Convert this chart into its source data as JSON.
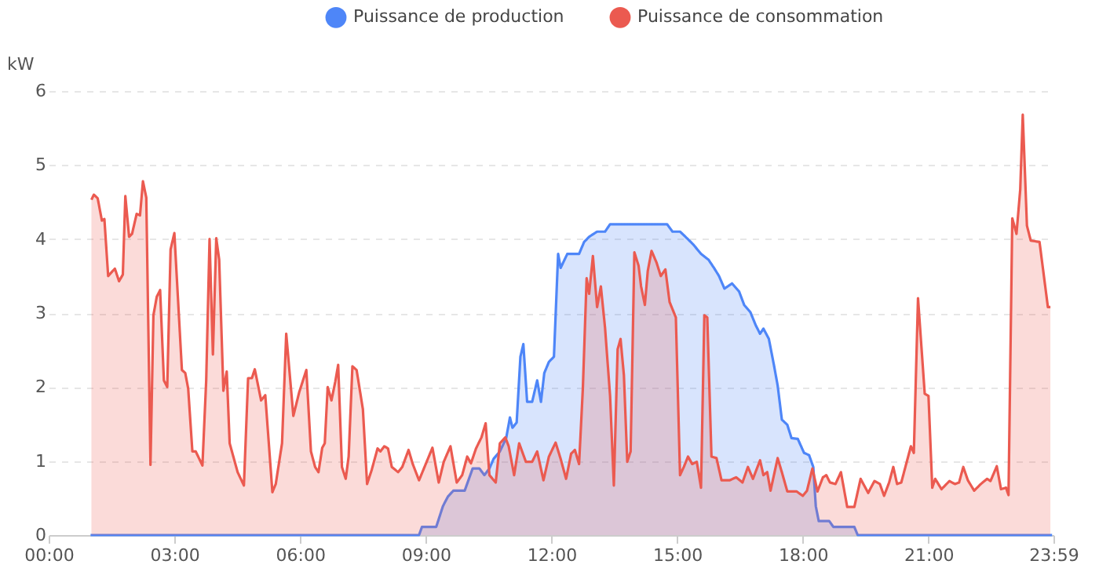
{
  "chart_data": {
    "type": "area",
    "ylabel": "kW",
    "xlim": [
      0,
      23.983
    ],
    "xticks": [
      {
        "value": 0,
        "label": "00:00"
      },
      {
        "value": 3,
        "label": "03:00"
      },
      {
        "value": 6,
        "label": "06:00"
      },
      {
        "value": 9,
        "label": "09:00"
      },
      {
        "value": 12,
        "label": "12:00"
      },
      {
        "value": 15,
        "label": "15:00"
      },
      {
        "value": 18,
        "label": "18:00"
      },
      {
        "value": 21,
        "label": "21:00"
      },
      {
        "value": 23.983,
        "label": "23:59"
      }
    ],
    "ylim": [
      0,
      6
    ],
    "yticks": [
      0,
      1,
      2,
      3,
      4,
      5,
      6
    ],
    "grid": "y",
    "legend": "top",
    "marker": "none",
    "line_style": "solid",
    "series": [
      {
        "name": "Puissance de production",
        "color": "#4e86f8",
        "x": [
          1.0,
          8.84,
          8.91,
          9.25,
          9.41,
          9.53,
          9.66,
          9.93,
          10.12,
          10.28,
          10.4,
          10.52,
          10.62,
          10.77,
          10.92,
          11.01,
          11.07,
          11.17,
          11.26,
          11.33,
          11.42,
          11.54,
          11.66,
          11.75,
          11.83,
          11.94,
          12.06,
          12.16,
          12.22,
          12.38,
          12.66,
          12.78,
          12.9,
          13.09,
          13.28,
          13.4,
          14.76,
          14.89,
          15.07,
          15.2,
          15.38,
          15.57,
          15.75,
          15.88,
          16.0,
          16.13,
          16.31,
          16.48,
          16.6,
          16.75,
          16.88,
          16.98,
          17.06,
          17.19,
          17.31,
          17.4,
          17.5,
          17.63,
          17.73,
          17.88,
          18.03,
          18.15,
          18.25,
          18.31,
          18.38,
          18.63,
          18.73,
          19.23,
          19.31,
          23.95
        ],
        "values": [
          0,
          0,
          0.11,
          0.11,
          0.39,
          0.52,
          0.6,
          0.6,
          0.9,
          0.9,
          0.81,
          0.9,
          1.03,
          1.13,
          1.31,
          1.59,
          1.45,
          1.52,
          2.41,
          2.58,
          1.8,
          1.8,
          2.09,
          1.8,
          2.19,
          2.34,
          2.41,
          3.8,
          3.61,
          3.8,
          3.8,
          3.96,
          4.03,
          4.1,
          4.1,
          4.2,
          4.2,
          4.1,
          4.1,
          4.03,
          3.93,
          3.8,
          3.72,
          3.61,
          3.5,
          3.33,
          3.4,
          3.29,
          3.11,
          3.01,
          2.83,
          2.72,
          2.79,
          2.65,
          2.3,
          2.02,
          1.56,
          1.49,
          1.31,
          1.3,
          1.11,
          1.08,
          0.92,
          0.39,
          0.19,
          0.19,
          0.11,
          0.11,
          0,
          0
        ]
      },
      {
        "name": "Puissance de consommation",
        "color": "#eb5a50",
        "x": [
          1.02,
          1.08,
          1.17,
          1.27,
          1.33,
          1.42,
          1.58,
          1.68,
          1.77,
          1.83,
          1.92,
          1.99,
          2.1,
          2.18,
          2.25,
          2.33,
          2.43,
          2.5,
          2.58,
          2.66,
          2.75,
          2.83,
          2.91,
          3.0,
          3.18,
          3.26,
          3.33,
          3.43,
          3.51,
          3.67,
          3.76,
          3.84,
          3.92,
          4.0,
          4.07,
          4.17,
          4.25,
          4.32,
          4.51,
          4.66,
          4.76,
          4.85,
          4.92,
          5.07,
          5.17,
          5.34,
          5.42,
          5.57,
          5.67,
          5.84,
          5.98,
          6.15,
          6.26,
          6.36,
          6.44,
          6.53,
          6.59,
          6.66,
          6.75,
          6.84,
          6.91,
          7.0,
          7.09,
          7.16,
          7.25,
          7.35,
          7.5,
          7.6,
          7.71,
          7.85,
          7.92,
          8.01,
          8.1,
          8.19,
          8.34,
          8.44,
          8.59,
          8.69,
          8.84,
          9.0,
          9.16,
          9.31,
          9.43,
          9.59,
          9.74,
          9.87,
          9.99,
          10.08,
          10.2,
          10.33,
          10.43,
          10.52,
          10.67,
          10.77,
          10.9,
          10.98,
          11.11,
          11.23,
          11.39,
          11.54,
          11.66,
          11.81,
          11.94,
          12.1,
          12.22,
          12.35,
          12.47,
          12.56,
          12.66,
          12.75,
          12.84,
          12.9,
          12.99,
          13.09,
          13.18,
          13.28,
          13.4,
          13.49,
          13.58,
          13.65,
          13.73,
          13.81,
          13.89,
          13.98,
          14.08,
          14.14,
          14.23,
          14.3,
          14.39,
          14.51,
          14.61,
          14.72,
          14.82,
          14.97,
          15.07,
          15.16,
          15.26,
          15.36,
          15.47,
          15.57,
          15.65,
          15.72,
          15.82,
          15.94,
          16.06,
          16.25,
          16.41,
          16.56,
          16.69,
          16.81,
          16.98,
          17.06,
          17.15,
          17.23,
          17.4,
          17.5,
          17.63,
          17.85,
          18.0,
          18.1,
          18.23,
          18.35,
          18.48,
          18.56,
          18.65,
          18.78,
          18.91,
          19.06,
          19.23,
          19.38,
          19.56,
          19.71,
          19.84,
          19.94,
          20.06,
          20.16,
          20.25,
          20.35,
          20.58,
          20.65,
          20.75,
          20.91,
          21.0,
          21.09,
          21.16,
          21.31,
          21.5,
          21.63,
          21.73,
          21.83,
          21.94,
          22.09,
          22.25,
          22.4,
          22.48,
          22.63,
          22.73,
          22.85,
          22.91,
          23.0,
          23.1,
          23.19,
          23.25,
          23.35,
          23.44,
          23.65,
          23.85,
          23.91
        ],
        "values": [
          4.53,
          4.6,
          4.55,
          4.25,
          4.27,
          3.5,
          3.6,
          3.43,
          3.52,
          4.58,
          4.03,
          4.07,
          4.34,
          4.32,
          4.78,
          4.56,
          0.95,
          2.97,
          3.22,
          3.31,
          2.09,
          2.0,
          3.86,
          4.08,
          2.23,
          2.19,
          1.98,
          1.13,
          1.13,
          0.94,
          2.09,
          4.0,
          2.44,
          4.01,
          3.72,
          1.95,
          2.21,
          1.24,
          0.85,
          0.67,
          2.12,
          2.12,
          2.24,
          1.82,
          1.89,
          0.58,
          0.69,
          1.24,
          2.72,
          1.61,
          1.93,
          2.23,
          1.13,
          0.92,
          0.85,
          1.18,
          1.24,
          2.0,
          1.82,
          2.07,
          2.3,
          0.92,
          0.76,
          1.06,
          2.28,
          2.23,
          1.7,
          0.69,
          0.88,
          1.17,
          1.13,
          1.2,
          1.17,
          0.92,
          0.85,
          0.92,
          1.15,
          0.96,
          0.74,
          0.96,
          1.18,
          0.71,
          0.99,
          1.2,
          0.71,
          0.81,
          1.06,
          0.97,
          1.17,
          1.32,
          1.51,
          0.81,
          0.71,
          1.24,
          1.32,
          1.2,
          0.81,
          1.24,
          0.99,
          0.99,
          1.13,
          0.74,
          1.06,
          1.25,
          1.03,
          0.76,
          1.1,
          1.15,
          0.96,
          1.98,
          3.47,
          3.26,
          3.77,
          3.08,
          3.36,
          2.8,
          1.88,
          0.67,
          2.51,
          2.65,
          2.16,
          0.99,
          1.13,
          3.82,
          3.64,
          3.36,
          3.11,
          3.57,
          3.84,
          3.68,
          3.5,
          3.59,
          3.15,
          2.94,
          0.81,
          0.92,
          1.06,
          0.96,
          0.99,
          0.64,
          2.97,
          2.94,
          1.06,
          1.04,
          0.74,
          0.74,
          0.78,
          0.71,
          0.92,
          0.76,
          1.01,
          0.81,
          0.85,
          0.6,
          1.04,
          0.85,
          0.59,
          0.59,
          0.53,
          0.6,
          0.9,
          0.59,
          0.78,
          0.81,
          0.71,
          0.69,
          0.85,
          0.38,
          0.38,
          0.76,
          0.57,
          0.73,
          0.69,
          0.53,
          0.71,
          0.92,
          0.69,
          0.71,
          1.2,
          1.11,
          3.2,
          1.91,
          1.88,
          0.64,
          0.76,
          0.62,
          0.73,
          0.69,
          0.71,
          0.92,
          0.74,
          0.6,
          0.69,
          0.76,
          0.73,
          0.93,
          0.62,
          0.64,
          0.54,
          4.28,
          4.07,
          4.67,
          5.68,
          4.18,
          3.98,
          3.96,
          3.08,
          3.08
        ]
      }
    ]
  }
}
